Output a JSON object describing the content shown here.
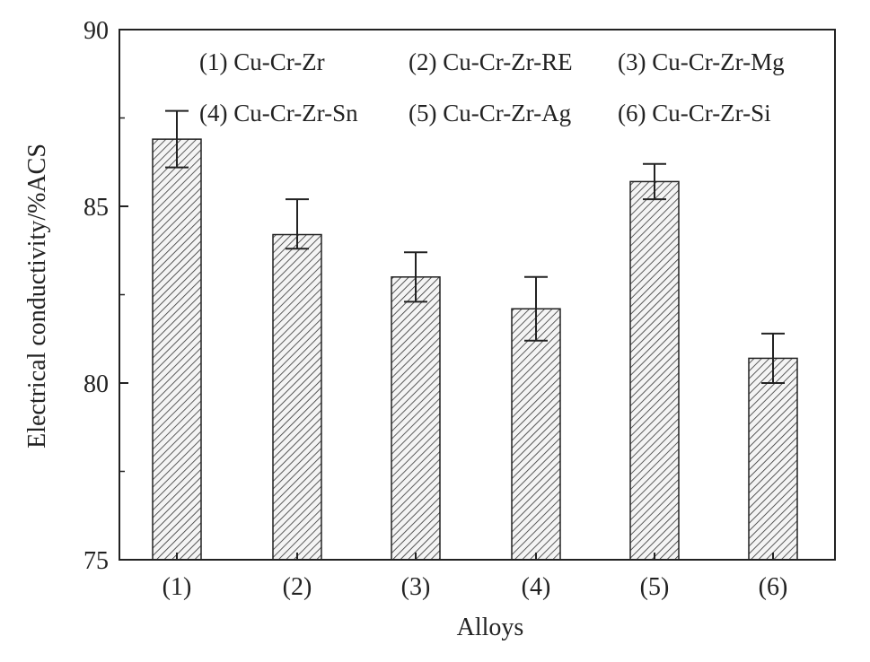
{
  "chart_data": {
    "type": "bar",
    "categories": [
      "(1)",
      "(2)",
      "(3)",
      "(4)",
      "(5)",
      "(6)"
    ],
    "values": [
      86.9,
      84.2,
      83.0,
      82.1,
      85.7,
      80.7
    ],
    "error_low": [
      86.1,
      83.8,
      82.3,
      81.2,
      85.2,
      80.0
    ],
    "error_high": [
      87.7,
      85.2,
      83.7,
      83.0,
      86.2,
      81.4
    ],
    "xlabel": "Alloys",
    "ylabel": "Electrical conductivity/%ACS",
    "ylim": [
      75,
      90
    ],
    "yticks": [
      "75",
      "80",
      "85",
      "90"
    ],
    "grid": false,
    "bar_fill": "hatched",
    "bar_color": "#222222",
    "legend_position": "top",
    "legend": [
      "(1) Cu-Cr-Zr",
      "(2) Cu-Cr-Zr-RE",
      "(3) Cu-Cr-Zr-Mg",
      "(4) Cu-Cr-Zr-Sn",
      "(5) Cu-Cr-Zr-Ag",
      "(6) Cu-Cr-Zr-Si"
    ]
  }
}
